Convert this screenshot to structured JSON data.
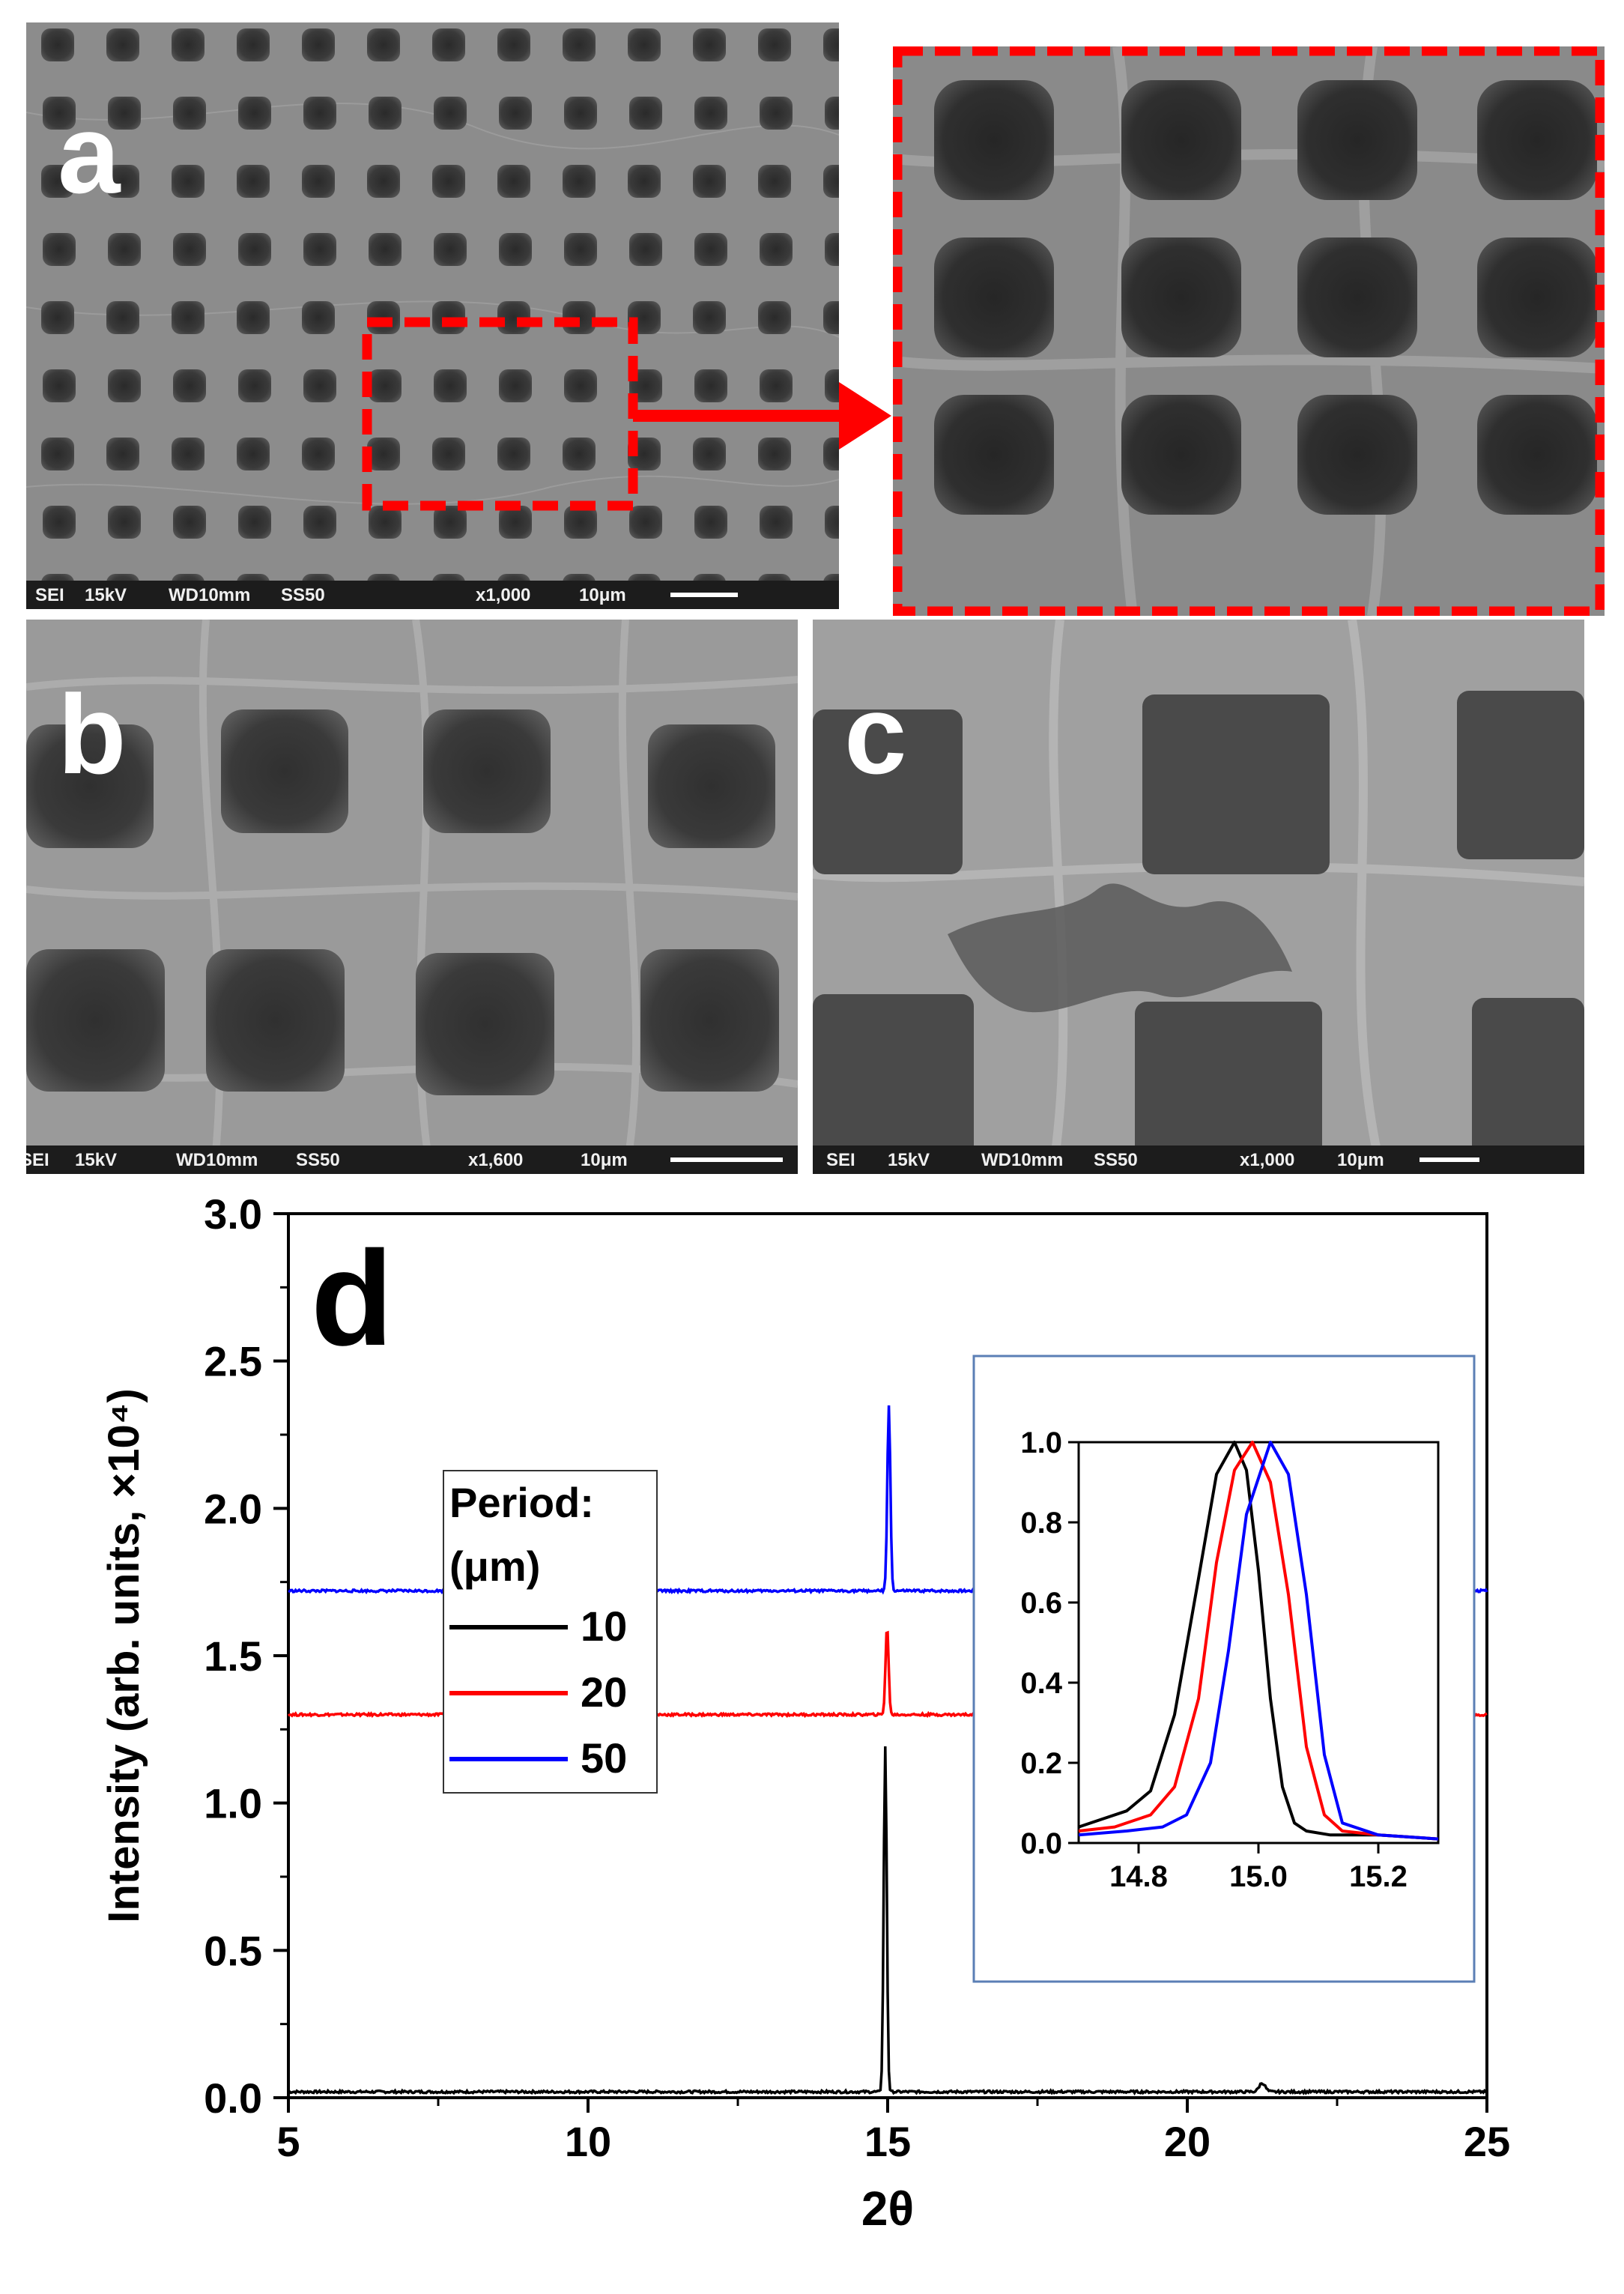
{
  "panels": {
    "a": {
      "label": "a",
      "sem": {
        "detector": "SEI",
        "voltage": "15kV",
        "wd": "WD10mm",
        "spot": "SS50",
        "mag": "x1,000",
        "scale": "10μm"
      }
    },
    "b": {
      "label": "b",
      "sem": {
        "detector": "SEI",
        "voltage": "15kV",
        "wd": "WD10mm",
        "spot": "SS50",
        "mag": "x1,600",
        "scale": "10μm"
      }
    },
    "c": {
      "label": "c",
      "sem": {
        "detector": "SEI",
        "voltage": "15kV",
        "wd": "WD10mm",
        "spot": "SS50",
        "mag": "x1,000",
        "scale": "10μm"
      }
    }
  },
  "colors": {
    "highlight": "#ff0000",
    "inset_border": "#5b7fb5"
  },
  "chart_data": [
    {
      "type": "line",
      "panel_label": "d",
      "xlabel": "2θ",
      "ylabel": "Intensity (arb. units, ×10⁴)",
      "xlim": [
        5,
        25
      ],
      "ylim": [
        0,
        3.0
      ],
      "xticks": [
        "5",
        "10",
        "15",
        "20",
        "25"
      ],
      "yticks": [
        "0.0",
        "0.5",
        "1.0",
        "1.5",
        "2.0",
        "2.5",
        "3.0"
      ],
      "legend": {
        "title_line1": "Period:",
        "title_line2": "(μm)",
        "position": "center-left"
      },
      "series": [
        {
          "name": "10",
          "color": "#000000",
          "baseline": 0.02,
          "peaks": [
            {
              "x": 14.96,
              "height": 1.17,
              "width": 0.06
            },
            {
              "x": 21.25,
              "height": 0.03,
              "width": 0.12
            }
          ]
        },
        {
          "name": "20",
          "color": "#ff0000",
          "baseline": 1.3,
          "peaks": [
            {
              "x": 14.99,
              "height": 0.3,
              "width": 0.06
            }
          ]
        },
        {
          "name": "50",
          "color": "#0000ff",
          "baseline": 1.72,
          "peaks": [
            {
              "x": 15.02,
              "height": 0.63,
              "width": 0.06
            }
          ]
        }
      ]
    },
    {
      "type": "line",
      "inset": true,
      "xlim": [
        14.7,
        15.3
      ],
      "ylim": [
        0,
        1.0
      ],
      "xticks": [
        "14.8",
        "15.0",
        "15.2"
      ],
      "yticks": [
        "0.0",
        "0.2",
        "0.4",
        "0.6",
        "0.8",
        "1.0"
      ],
      "series": [
        {
          "name": "10",
          "color": "#000000",
          "x": [
            14.7,
            14.74,
            14.78,
            14.82,
            14.86,
            14.9,
            14.93,
            14.96,
            14.98,
            15.0,
            15.02,
            15.04,
            15.06,
            15.08,
            15.12,
            15.2,
            15.3
          ],
          "y": [
            0.04,
            0.06,
            0.08,
            0.13,
            0.32,
            0.66,
            0.92,
            1.0,
            0.93,
            0.68,
            0.36,
            0.14,
            0.05,
            0.03,
            0.02,
            0.02,
            0.01
          ]
        },
        {
          "name": "20",
          "color": "#ff0000",
          "x": [
            14.7,
            14.76,
            14.82,
            14.86,
            14.9,
            14.93,
            14.96,
            14.99,
            15.02,
            15.05,
            15.08,
            15.11,
            15.14,
            15.2,
            15.3
          ],
          "y": [
            0.03,
            0.04,
            0.07,
            0.14,
            0.36,
            0.7,
            0.93,
            1.0,
            0.9,
            0.62,
            0.24,
            0.07,
            0.03,
            0.02,
            0.01
          ]
        },
        {
          "name": "50",
          "color": "#0000ff",
          "x": [
            14.7,
            14.78,
            14.84,
            14.88,
            14.92,
            14.95,
            14.98,
            15.02,
            15.05,
            15.08,
            15.11,
            15.14,
            15.2,
            15.3
          ],
          "y": [
            0.02,
            0.03,
            0.04,
            0.07,
            0.2,
            0.48,
            0.82,
            1.0,
            0.92,
            0.62,
            0.22,
            0.05,
            0.02,
            0.01
          ]
        }
      ]
    }
  ]
}
